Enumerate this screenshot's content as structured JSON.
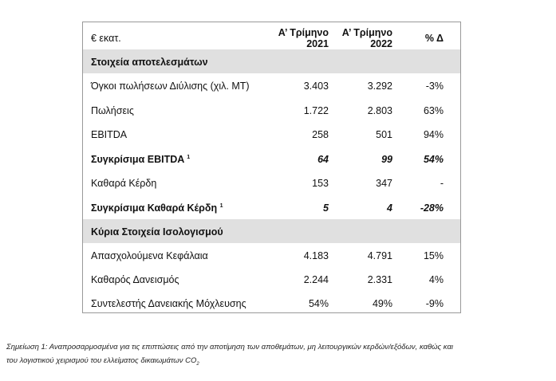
{
  "header": {
    "unit": "€ εκατ.",
    "col1": [
      "Α’ Τρίμηνο",
      "2021"
    ],
    "col2": [
      "Α’ Τρίμηνο",
      "2022"
    ],
    "col3": "% Δ"
  },
  "section1": "Στοιχεία αποτελεσμάτων",
  "rows1": [
    {
      "label": "Όγκοι πωλήσεων Διύλισης (χιλ. ΜΤ)",
      "v2021": "3.403",
      "v2022": "3.292",
      "delta": "-3%"
    },
    {
      "label": "Πωλήσεις",
      "v2021": "1.722",
      "v2022": "2.803",
      "delta": "63%"
    },
    {
      "label": "EBITDA",
      "v2021": "258",
      "v2022": "501",
      "delta": "94%"
    },
    {
      "label": "Συγκρίσιμα EBITDA",
      "sup": "1",
      "v2021": "64",
      "v2022": "99",
      "delta": "54%"
    },
    {
      "label": "Καθαρά Κέρδη",
      "v2021": "153",
      "v2022": "347",
      "delta": "-"
    },
    {
      "label": "Συγκρίσιμα Καθαρά Κέρδη",
      "sup": "1",
      "v2021": "5",
      "v2022": "4",
      "delta": "-28%"
    }
  ],
  "section2": "Κύρια Στοιχεία Ισολογισμού",
  "rows2": [
    {
      "label": "Απασχολούμενα Κεφάλαια",
      "v2021": "4.183",
      "v2022": "4.791",
      "delta": "15%"
    },
    {
      "label": "Καθαρός Δανεισμός",
      "v2021": "2.244",
      "v2022": "2.331",
      "delta": "4%"
    },
    {
      "label": "Συντελεστής Δανειακής Μόχλευσης",
      "v2021": "54%",
      "v2022": "49%",
      "delta": "-9%"
    }
  ],
  "note": [
    "Σημείωση 1: Αναπροσαρμοσμένα για τις επιπτώσεις από την αποτίμηση των αποθεμάτων, μη λειτουργικών κερδών/εξόδων, καθώς και",
    "του λογιστικού χειρισμού του ελλείματος δικαιωμάτων CO",
    "2"
  ]
}
